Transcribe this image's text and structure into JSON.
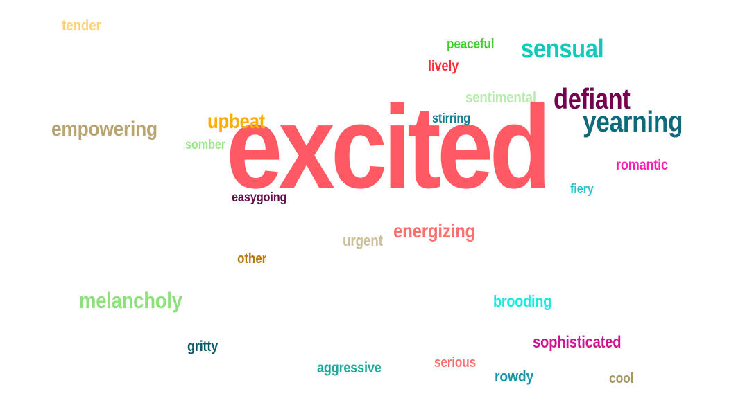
{
  "words": {
    "excited": {
      "text": "excited",
      "color": "#ff5a63"
    },
    "defiant": {
      "text": "defiant",
      "color": "#750050"
    },
    "yearning": {
      "text": "yearning",
      "color": "#0e6b7e"
    },
    "sensual": {
      "text": "sensual",
      "color": "#13c9b9"
    },
    "empowering": {
      "text": "empowering",
      "color": "#b8a571"
    },
    "melancholy": {
      "text": "melancholy",
      "color": "#8ee07c"
    },
    "energizing": {
      "text": "energizing",
      "color": "#ff7070"
    },
    "upbeat": {
      "text": "upbeat",
      "color": "#ffad00"
    },
    "sophisticated": {
      "text": "sophisticated",
      "color": "#cf1491"
    },
    "sentimental": {
      "text": "sentimental",
      "color": "#b9ebb0"
    },
    "brooding": {
      "text": "brooding",
      "color": "#13ecdc"
    },
    "romantic": {
      "text": "romantic",
      "color": "#ff21b5"
    },
    "urgent": {
      "text": "urgent",
      "color": "#cdbf99"
    },
    "aggressive": {
      "text": "aggressive",
      "color": "#20a89b"
    },
    "rowdy": {
      "text": "rowdy",
      "color": "#1596a7"
    },
    "tender": {
      "text": "tender",
      "color": "#ffd27a"
    },
    "gritty": {
      "text": "gritty",
      "color": "#0b5a69"
    },
    "lively": {
      "text": "lively",
      "color": "#ff2d33"
    },
    "peaceful": {
      "text": "peaceful",
      "color": "#3ecf2a"
    },
    "serious": {
      "text": "serious",
      "color": "#ff6d6d"
    },
    "stirring": {
      "text": "stirring",
      "color": "#117b8f"
    },
    "somber": {
      "text": "somber",
      "color": "#9ee58d"
    },
    "easygoing": {
      "text": "easygoing",
      "color": "#640e4c"
    },
    "other": {
      "text": "other",
      "color": "#b8780c"
    },
    "fiery": {
      "text": "fiery",
      "color": "#23c6c4"
    },
    "cool": {
      "text": "cool",
      "color": "#a49766"
    }
  }
}
